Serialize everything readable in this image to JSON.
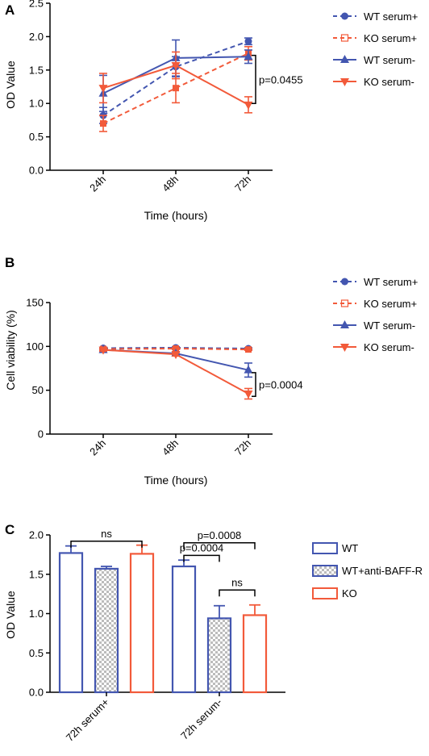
{
  "colors": {
    "wt": "#4356b0",
    "ko": "#f25a3a",
    "axis": "#000000"
  },
  "chart_data": [
    {
      "panel": "A",
      "type": "line",
      "xlabel": "Time (hours)",
      "ylabel": "OD Value",
      "categories": [
        "24h",
        "48h",
        "72h"
      ],
      "ylim": [
        0,
        2.5
      ],
      "yticks": [
        "0.0",
        "0.5",
        "1.0",
        "1.5",
        "2.0",
        "2.5"
      ],
      "series": [
        {
          "name": "WT serum+",
          "color": "#4356b0",
          "dashed": true,
          "marker": "circle",
          "values": [
            0.82,
            1.55,
            1.93
          ],
          "errors": [
            0.12,
            0.15,
            0.05
          ]
        },
        {
          "name": "KO serum+",
          "color": "#f25a3a",
          "dashed": true,
          "marker": "square",
          "values": [
            0.7,
            1.23,
            1.75
          ],
          "errors": [
            0.12,
            0.22,
            0.1
          ]
        },
        {
          "name": "WT serum-",
          "color": "#4356b0",
          "dashed": false,
          "marker": "triangle-up",
          "values": [
            1.15,
            1.68,
            1.7
          ],
          "errors": [
            0.27,
            0.27,
            0.1
          ]
        },
        {
          "name": "KO serum-",
          "color": "#f25a3a",
          "dashed": false,
          "marker": "triangle-down",
          "values": [
            1.23,
            1.57,
            0.98
          ],
          "errors": [
            0.22,
            0.2,
            0.12
          ]
        }
      ],
      "annotation": {
        "text": "p=0.0455",
        "y_from": 1.72,
        "y_to": 1.0
      }
    },
    {
      "panel": "B",
      "type": "line",
      "xlabel": "Time (hours)",
      "ylabel": "Cell viability (%)",
      "categories": [
        "24h",
        "48h",
        "72h"
      ],
      "ylim": [
        0,
        150
      ],
      "yticks": [
        "0",
        "50",
        "100",
        "150"
      ],
      "series": [
        {
          "name": "WT serum+",
          "color": "#4356b0",
          "dashed": true,
          "marker": "circle",
          "values": [
            98,
            98.5,
            97.5
          ],
          "errors": [
            1,
            1,
            1
          ]
        },
        {
          "name": "KO serum+",
          "color": "#f25a3a",
          "dashed": true,
          "marker": "square",
          "values": [
            97,
            97.5,
            96.5
          ],
          "errors": [
            1,
            1,
            1
          ]
        },
        {
          "name": "WT serum-",
          "color": "#4356b0",
          "dashed": false,
          "marker": "triangle-up",
          "values": [
            96,
            92,
            73
          ],
          "errors": [
            1.5,
            2,
            8
          ]
        },
        {
          "name": "KO serum-",
          "color": "#f25a3a",
          "dashed": false,
          "marker": "triangle-down",
          "values": [
            96,
            91,
            46
          ],
          "errors": [
            1.5,
            2,
            6
          ]
        }
      ],
      "annotation": {
        "text": "p=0.0004",
        "y_from": 70,
        "y_to": 43
      }
    },
    {
      "panel": "C",
      "type": "bar",
      "ylabel": "OD Value",
      "groups": [
        "72h serum+",
        "72h serum-"
      ],
      "ylim": [
        0,
        2.0
      ],
      "yticks": [
        "0.0",
        "0.5",
        "1.0",
        "1.5",
        "2.0"
      ],
      "series": [
        {
          "name": "WT",
          "color": "#4356b0",
          "pattern": "none",
          "values": [
            1.77,
            1.6
          ],
          "errors": [
            0.09,
            0.08
          ]
        },
        {
          "name": "WT+anti-BAFF-R",
          "color": "#4356b0",
          "pattern": "checker",
          "values": [
            1.57,
            0.94
          ],
          "errors": [
            0.03,
            0.16
          ]
        },
        {
          "name": "KO",
          "color": "#f25a3a",
          "pattern": "none",
          "values": [
            1.76,
            0.98
          ],
          "errors": [
            0.11,
            0.13
          ]
        }
      ],
      "comparisons": [
        {
          "group": 0,
          "from": 0,
          "to": 2,
          "label": "ns",
          "y": 1.92
        },
        {
          "group": 1,
          "from": 0,
          "to": 1,
          "label": "p=0.0004",
          "y": 1.74
        },
        {
          "group": 1,
          "from": 0,
          "to": 2,
          "label": "p=0.0008",
          "y": 1.9
        },
        {
          "group": 1,
          "from": 1,
          "to": 2,
          "label": "ns",
          "y": 1.3
        }
      ]
    }
  ]
}
